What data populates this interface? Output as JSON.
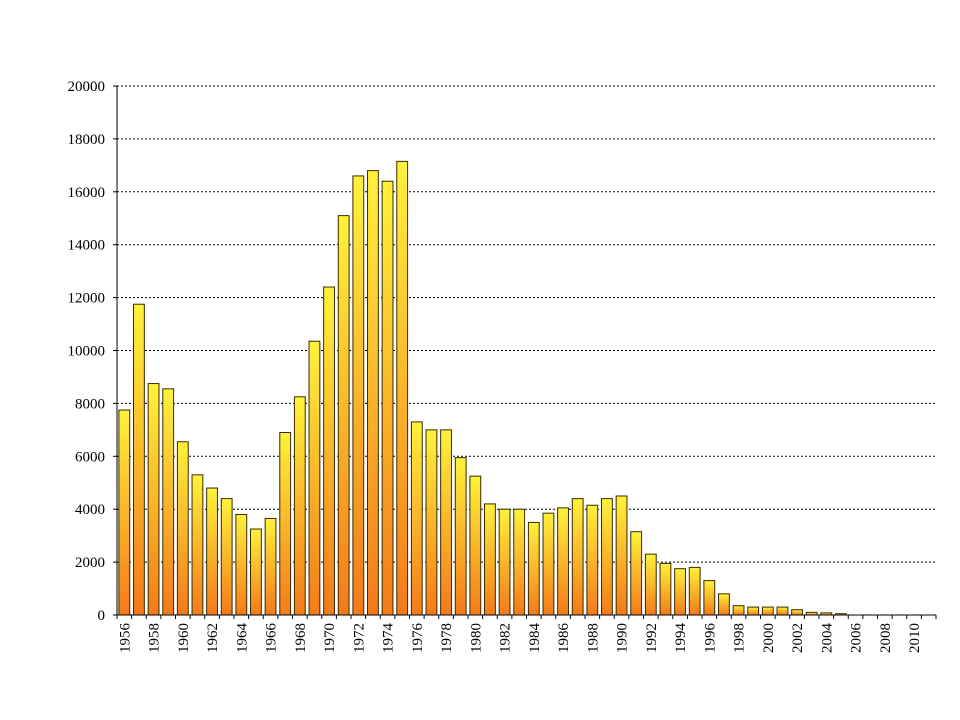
{
  "chart_data": {
    "type": "bar",
    "title": "",
    "xlabel": "",
    "ylabel": "",
    "ylim": [
      0,
      20000
    ],
    "yticks": [
      "0",
      "2000",
      "4000",
      "6000",
      "8000",
      "10000",
      "12000",
      "14000",
      "16000",
      "18000",
      "20000"
    ],
    "grid": true,
    "legend": "none",
    "colors": {
      "bar_top": "#fff23a",
      "bar_bottom": "#f47a1a",
      "bar_edge": "#3a2a00"
    },
    "categories": [
      "1956",
      "1957",
      "1958",
      "1959",
      "1960",
      "1961",
      "1962",
      "1963",
      "1964",
      "1965",
      "1966",
      "1967",
      "1968",
      "1969",
      "1970",
      "1971",
      "1972",
      "1973",
      "1974",
      "1975",
      "1976",
      "1977",
      "1978",
      "1979",
      "1980",
      "1981",
      "1982",
      "1983",
      "1984",
      "1985",
      "1986",
      "1987",
      "1988",
      "1989",
      "1990",
      "1991",
      "1992",
      "1993",
      "1994",
      "1995",
      "1996",
      "1997",
      "1998",
      "1999",
      "2000",
      "2001",
      "2002",
      "2003",
      "2004",
      "2005",
      "2006",
      "2007",
      "2008",
      "2009",
      "2010",
      "2011"
    ],
    "xtick_labels": [
      "1956",
      "",
      "1958",
      "",
      "1960",
      "",
      "1962",
      "",
      "1964",
      "",
      "1966",
      "",
      "1968",
      "",
      "1970",
      "",
      "1972",
      "",
      "1974",
      "",
      "1976",
      "",
      "1978",
      "",
      "1980",
      "",
      "1982",
      "",
      "1984",
      "",
      "1986",
      "",
      "1988",
      "",
      "1990",
      "",
      "1992",
      "",
      "1994",
      "",
      "1996",
      "",
      "1998",
      "",
      "2000",
      "",
      "2002",
      "",
      "2004",
      "",
      "2006",
      "",
      "2008",
      "",
      "2010",
      ""
    ],
    "values": [
      7750,
      11750,
      8750,
      8550,
      6550,
      5300,
      4800,
      4400,
      3800,
      3250,
      3650,
      6900,
      8250,
      10350,
      12400,
      15100,
      16600,
      16800,
      16400,
      17150,
      7300,
      7000,
      7000,
      5950,
      5250,
      4200,
      4000,
      4000,
      3500,
      3850,
      4050,
      4400,
      4150,
      4400,
      4500,
      3150,
      2300,
      1950,
      1750,
      1800,
      1300,
      800,
      350,
      300,
      300,
      300,
      200,
      100,
      80,
      50,
      0,
      0,
      0,
      0,
      0,
      0
    ]
  }
}
